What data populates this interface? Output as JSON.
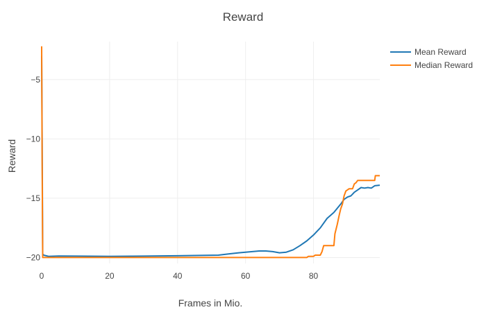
{
  "chart_data": {
    "type": "line",
    "title": "Reward",
    "xlabel": "Frames in Mio.",
    "ylabel": "Reward",
    "xlim": [
      0,
      99.5
    ],
    "ylim": [
      -20.5,
      -1.8
    ],
    "x_ticks": [
      0,
      20,
      40,
      60,
      80
    ],
    "y_ticks": [
      -5,
      -10,
      -15,
      -20
    ],
    "x_tick_labels": [
      "0",
      "20",
      "40",
      "60",
      "80"
    ],
    "y_tick_labels": [
      "−5",
      "−10",
      "−15",
      "−20"
    ],
    "grid": true,
    "legend_position": "top-right",
    "series": [
      {
        "name": "Mean Reward",
        "color": "#1f77b4",
        "points": [
          [
            0,
            -3.0
          ],
          [
            0.15,
            -10.0
          ],
          [
            0.3,
            -19.7
          ],
          [
            0.6,
            -19.8
          ],
          [
            2,
            -19.9
          ],
          [
            5,
            -19.87
          ],
          [
            10,
            -19.88
          ],
          [
            20,
            -19.9
          ],
          [
            30,
            -19.88
          ],
          [
            40,
            -19.85
          ],
          [
            45,
            -19.83
          ],
          [
            52,
            -19.8
          ],
          [
            55,
            -19.7
          ],
          [
            58,
            -19.6
          ],
          [
            62,
            -19.5
          ],
          [
            64,
            -19.45
          ],
          [
            66,
            -19.45
          ],
          [
            68,
            -19.5
          ],
          [
            70,
            -19.6
          ],
          [
            72,
            -19.55
          ],
          [
            74,
            -19.35
          ],
          [
            76,
            -19.0
          ],
          [
            78,
            -18.6
          ],
          [
            80,
            -18.1
          ],
          [
            82,
            -17.5
          ],
          [
            84,
            -16.7
          ],
          [
            86,
            -16.2
          ],
          [
            88,
            -15.5
          ],
          [
            89,
            -15.1
          ],
          [
            90,
            -14.9
          ],
          [
            91,
            -14.8
          ],
          [
            92,
            -14.5
          ],
          [
            93,
            -14.3
          ],
          [
            94,
            -14.1
          ],
          [
            95,
            -14.15
          ],
          [
            96,
            -14.1
          ],
          [
            97,
            -14.15
          ],
          [
            98,
            -13.95
          ],
          [
            99.5,
            -13.9
          ]
        ]
      },
      {
        "name": "Median Reward",
        "color": "#ff7f0e",
        "points": [
          [
            0,
            -2.2
          ],
          [
            0.15,
            -12.0
          ],
          [
            0.3,
            -20.0
          ],
          [
            20,
            -20.0
          ],
          [
            40,
            -20.0
          ],
          [
            60,
            -20.0
          ],
          [
            78,
            -20.0
          ],
          [
            78.5,
            -19.9
          ],
          [
            80,
            -19.9
          ],
          [
            80.5,
            -19.8
          ],
          [
            82,
            -19.8
          ],
          [
            82.5,
            -19.5
          ],
          [
            83,
            -19.0
          ],
          [
            86,
            -19.0
          ],
          [
            86.3,
            -18.0
          ],
          [
            87,
            -17.2
          ],
          [
            87.5,
            -16.5
          ],
          [
            88,
            -15.9
          ],
          [
            88.5,
            -15.5
          ],
          [
            89,
            -14.8
          ],
          [
            89.5,
            -14.4
          ],
          [
            90.5,
            -14.2
          ],
          [
            91.5,
            -14.2
          ],
          [
            92,
            -13.8
          ],
          [
            92.5,
            -13.7
          ],
          [
            93,
            -13.5
          ],
          [
            97,
            -13.5
          ],
          [
            98,
            -13.5
          ],
          [
            98.2,
            -13.1
          ],
          [
            99.5,
            -13.1
          ]
        ]
      }
    ]
  }
}
